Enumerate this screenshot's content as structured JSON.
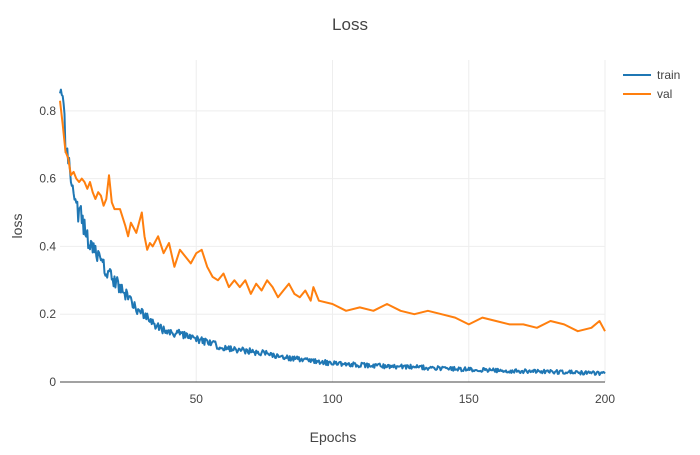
{
  "chart_data": {
    "type": "line",
    "title": "Loss",
    "xlabel": "Epochs",
    "ylabel": "loss",
    "xlim": [
      0,
      200
    ],
    "ylim": [
      0,
      0.95
    ],
    "x_ticks": [
      50,
      100,
      150,
      200
    ],
    "y_ticks": [
      0,
      0.2,
      0.4,
      0.6,
      0.8
    ],
    "grid": true,
    "legend": "top-right",
    "series": [
      {
        "name": "train",
        "color": "#1f77b4",
        "x": [
          0,
          1,
          2,
          3,
          4,
          5,
          6,
          8,
          10,
          12,
          14,
          16,
          18,
          20,
          22,
          25,
          28,
          30,
          33,
          36,
          40,
          45,
          50,
          55,
          60,
          65,
          70,
          75,
          80,
          85,
          90,
          95,
          100,
          110,
          120,
          130,
          140,
          150,
          160,
          170,
          180,
          190,
          200
        ],
        "y": [
          0.91,
          0.8,
          0.72,
          0.64,
          0.6,
          0.56,
          0.52,
          0.48,
          0.42,
          0.4,
          0.37,
          0.34,
          0.32,
          0.3,
          0.28,
          0.25,
          0.22,
          0.2,
          0.18,
          0.16,
          0.15,
          0.14,
          0.125,
          0.115,
          0.1,
          0.095,
          0.09,
          0.085,
          0.075,
          0.07,
          0.065,
          0.06,
          0.055,
          0.05,
          0.047,
          0.044,
          0.04,
          0.037,
          0.034,
          0.032,
          0.03,
          0.028,
          0.025
        ]
      },
      {
        "name": "val",
        "color": "#ff7f0e",
        "x": [
          0,
          1,
          2,
          3,
          4,
          5,
          6,
          7,
          8,
          9,
          10,
          11,
          12,
          13,
          14,
          15,
          16,
          17,
          18,
          19,
          20,
          22,
          24,
          25,
          26,
          28,
          30,
          31,
          32,
          33,
          34,
          36,
          38,
          40,
          42,
          44,
          46,
          48,
          50,
          52,
          54,
          56,
          58,
          60,
          62,
          64,
          66,
          68,
          70,
          72,
          74,
          76,
          78,
          80,
          82,
          84,
          86,
          88,
          90,
          92,
          93,
          95,
          100,
          105,
          110,
          115,
          120,
          125,
          130,
          135,
          140,
          145,
          150,
          155,
          160,
          165,
          170,
          175,
          180,
          185,
          190,
          195,
          198,
          200
        ],
        "y": [
          0.83,
          0.76,
          0.68,
          0.66,
          0.61,
          0.62,
          0.6,
          0.59,
          0.6,
          0.59,
          0.57,
          0.59,
          0.56,
          0.54,
          0.56,
          0.55,
          0.52,
          0.54,
          0.61,
          0.53,
          0.51,
          0.51,
          0.46,
          0.43,
          0.47,
          0.44,
          0.5,
          0.43,
          0.39,
          0.41,
          0.4,
          0.43,
          0.38,
          0.41,
          0.34,
          0.39,
          0.37,
          0.35,
          0.38,
          0.39,
          0.34,
          0.31,
          0.3,
          0.32,
          0.28,
          0.3,
          0.28,
          0.3,
          0.26,
          0.29,
          0.27,
          0.3,
          0.28,
          0.25,
          0.27,
          0.29,
          0.26,
          0.25,
          0.27,
          0.24,
          0.28,
          0.24,
          0.23,
          0.21,
          0.22,
          0.21,
          0.23,
          0.21,
          0.2,
          0.21,
          0.2,
          0.19,
          0.17,
          0.19,
          0.18,
          0.17,
          0.17,
          0.16,
          0.18,
          0.17,
          0.15,
          0.16,
          0.18,
          0.15
        ]
      }
    ]
  }
}
